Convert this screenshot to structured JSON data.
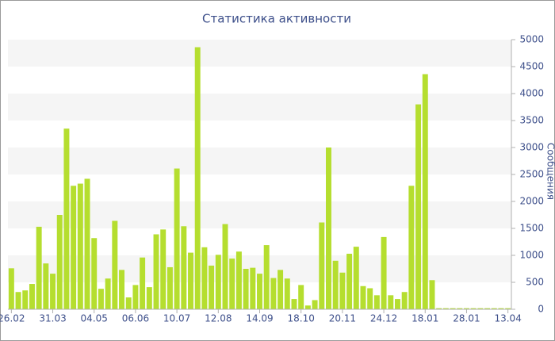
{
  "chart_data": {
    "type": "bar",
    "title": "Статистика активности",
    "y_label": "Сообщения",
    "categories": [
      "26.02",
      null,
      null,
      null,
      null,
      null,
      "31.03",
      null,
      null,
      null,
      null,
      null,
      "04.05",
      null,
      null,
      null,
      null,
      null,
      "06.06",
      null,
      null,
      null,
      null,
      null,
      "10.07",
      null,
      null,
      null,
      null,
      null,
      "12.08",
      null,
      null,
      null,
      null,
      null,
      "14.09",
      null,
      null,
      null,
      null,
      null,
      "18.10",
      null,
      null,
      null,
      null,
      null,
      "20.11",
      null,
      null,
      null,
      null,
      null,
      "24.12",
      null,
      null,
      null,
      null,
      null,
      "18.01",
      null,
      null,
      null,
      null,
      null,
      "28.01",
      null,
      null,
      null,
      null,
      null,
      "13.04"
    ],
    "values": [
      760,
      320,
      350,
      470,
      1530,
      850,
      660,
      1750,
      3350,
      2290,
      2330,
      2420,
      1320,
      380,
      570,
      1640,
      730,
      220,
      450,
      960,
      410,
      1390,
      1480,
      780,
      2610,
      1540,
      1050,
      4860,
      1150,
      810,
      1010,
      1580,
      940,
      1070,
      750,
      770,
      660,
      1190,
      580,
      730,
      570,
      190,
      450,
      70,
      170,
      1610,
      3000,
      900,
      680,
      1030,
      1160,
      430,
      390,
      260,
      1340,
      260,
      190,
      320,
      2290,
      3800,
      4360,
      540,
      20,
      20,
      20,
      20,
      20,
      20,
      20,
      20,
      20,
      20,
      20
    ],
    "color": "#b5de2f",
    "ylim": [
      0,
      5000
    ],
    "yticks": [
      0,
      500,
      1000,
      1500,
      2000,
      2500,
      3000,
      3500,
      4000,
      4500,
      5000
    ],
    "grid": true
  }
}
